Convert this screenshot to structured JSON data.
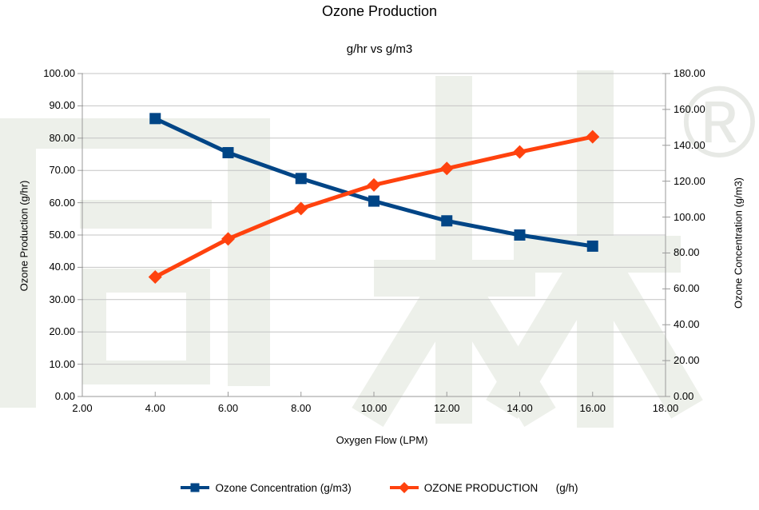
{
  "watermark": {
    "text": "同林",
    "registered_mark": "®",
    "color": "#edf0ea",
    "mark_color": "#e7e9e5"
  },
  "chart_data": {
    "type": "line",
    "title": "Ozone Production",
    "subtitle": "g/hr vs g/m3",
    "x_label": "Oxygen Flow (LPM)",
    "y_left_label": "Ozone Production (g/hr)",
    "y_right_label": "Ozone Concentration (g/m3)",
    "x": [
      4,
      6,
      8,
      10,
      12,
      14,
      16
    ],
    "x_range": [
      2,
      18
    ],
    "x_tick_step": 2,
    "y_left_range": [
      0,
      100
    ],
    "y_left_tick_step": 10,
    "y_right_range": [
      0,
      180
    ],
    "y_right_tick_step": 20,
    "tick_decimals": 2,
    "grid": "horizontal",
    "legend_position": "bottom",
    "grid_color": "#c4c4c4",
    "axis_color": "#9a9a9a",
    "series": [
      {
        "name": "Ozone Concentration (g/m3)",
        "axis": "right",
        "color": "#004586",
        "marker": "square",
        "values": [
          154.9,
          135.9,
          121.5,
          108.9,
          97.9,
          90.0,
          83.8
        ]
      },
      {
        "name": "OZONE PRODUCTION      (g/h)",
        "axis": "left",
        "color": "#ff420e",
        "marker": "diamond",
        "values": [
          37.0,
          48.8,
          58.2,
          65.5,
          70.6,
          75.7,
          80.4
        ]
      }
    ]
  }
}
